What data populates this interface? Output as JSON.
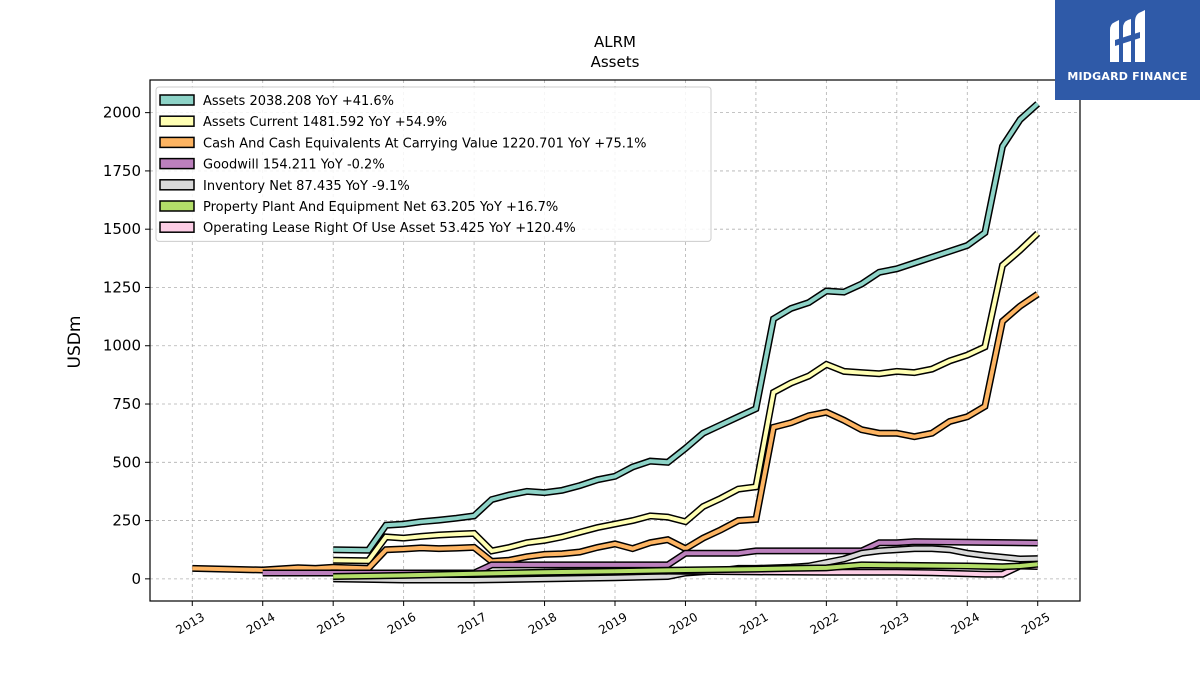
{
  "brand": {
    "name": "MIDGARD FINANCE",
    "bg_color": "#2f5aa8"
  },
  "chart_data": {
    "type": "line",
    "title": "ALRM",
    "subtitle": "Assets",
    "ylabel": "USDm",
    "xlabel": "",
    "xlim": [
      2012.4,
      2025.6
    ],
    "ylim": [
      -95,
      2140
    ],
    "x_ticks": [
      "2013",
      "2014",
      "2015",
      "2016",
      "2017",
      "2018",
      "2019",
      "2020",
      "2021",
      "2022",
      "2023",
      "2024",
      "2025"
    ],
    "y_ticks": [
      0,
      250,
      500,
      750,
      1000,
      1250,
      1500,
      1750,
      2000
    ],
    "grid": true,
    "legend_position": "top-left",
    "series": [
      {
        "name": "Assets  2038.208 YoY +41.6%",
        "color": "#8dd3c7",
        "x": [
          2015.0,
          2015.5,
          2015.75,
          2016.0,
          2016.25,
          2016.5,
          2016.75,
          2017.0,
          2017.25,
          2017.5,
          2017.75,
          2018.0,
          2018.25,
          2018.5,
          2018.75,
          2019.0,
          2019.25,
          2019.5,
          2019.75,
          2020.0,
          2020.25,
          2020.5,
          2020.75,
          2021.0,
          2021.25,
          2021.5,
          2021.75,
          2022.0,
          2022.25,
          2022.5,
          2022.75,
          2023.0,
          2023.25,
          2023.5,
          2023.75,
          2024.0,
          2024.25,
          2024.5,
          2024.75,
          2025.0
        ],
        "y": [
          125,
          123,
          230,
          235,
          245,
          252,
          260,
          270,
          340,
          360,
          375,
          370,
          380,
          400,
          425,
          440,
          480,
          505,
          500,
          560,
          625,
          660,
          695,
          730,
          1115,
          1160,
          1185,
          1235,
          1230,
          1265,
          1315,
          1330,
          1355,
          1380,
          1405,
          1430,
          1485,
          1855,
          1970,
          2038
        ]
      },
      {
        "name": "Assets Current  1481.592 YoY +54.9%",
        "color": "#ffffb3",
        "x": [
          2015.0,
          2015.5,
          2015.75,
          2016.0,
          2016.25,
          2016.5,
          2016.75,
          2017.0,
          2017.25,
          2017.5,
          2017.75,
          2018.0,
          2018.25,
          2018.5,
          2018.75,
          2019.0,
          2019.25,
          2019.5,
          2019.75,
          2020.0,
          2020.25,
          2020.5,
          2020.75,
          2021.0,
          2021.25,
          2021.5,
          2021.75,
          2022.0,
          2022.25,
          2022.5,
          2022.75,
          2023.0,
          2023.25,
          2023.5,
          2023.75,
          2024.0,
          2024.25,
          2024.5,
          2024.75,
          2025.0
        ],
        "y": [
          80,
          78,
          180,
          175,
          182,
          188,
          192,
          195,
          120,
          135,
          155,
          165,
          180,
          200,
          220,
          235,
          250,
          270,
          265,
          245,
          310,
          345,
          385,
          395,
          800,
          840,
          870,
          920,
          890,
          885,
          880,
          890,
          885,
          900,
          935,
          960,
          995,
          1345,
          1410,
          1482
        ]
      },
      {
        "name": "Cash And Cash Equivalents At Carrying Value  1220.701 YoY +75.1%",
        "color": "#fdb462",
        "x": [
          2013.0,
          2014.0,
          2014.5,
          2014.75,
          2015.0,
          2015.5,
          2015.75,
          2016.0,
          2016.25,
          2016.5,
          2016.75,
          2017.0,
          2017.25,
          2017.5,
          2017.75,
          2018.0,
          2018.25,
          2018.5,
          2018.75,
          2019.0,
          2019.25,
          2019.5,
          2019.75,
          2020.0,
          2020.25,
          2020.5,
          2020.75,
          2021.0,
          2021.25,
          2021.5,
          2021.75,
          2022.0,
          2022.25,
          2022.5,
          2022.75,
          2023.0,
          2023.25,
          2023.5,
          2023.75,
          2024.0,
          2024.25,
          2024.5,
          2024.75,
          2025.0
        ],
        "y": [
          45,
          38,
          48,
          45,
          50,
          45,
          125,
          128,
          133,
          130,
          132,
          135,
          75,
          80,
          95,
          105,
          108,
          115,
          135,
          150,
          130,
          155,
          168,
          130,
          175,
          210,
          250,
          255,
          650,
          670,
          700,
          715,
          680,
          640,
          625,
          625,
          610,
          625,
          675,
          695,
          740,
          1105,
          1170,
          1221
        ]
      },
      {
        "name": "Goodwill  154.211 YoY -0.2%",
        "color": "#bc80bd",
        "x": [
          2014.0,
          2017.0,
          2017.25,
          2019.75,
          2020.0,
          2020.75,
          2021.0,
          2022.5,
          2022.75,
          2023.0,
          2023.25,
          2025.0
        ],
        "y": [
          25,
          25,
          60,
          60,
          110,
          110,
          120,
          120,
          155,
          155,
          160,
          154
        ]
      },
      {
        "name": "Inventory Net  87.435 YoY -9.1%",
        "color": "#d9d9d9",
        "x": [
          2015.0,
          2016.0,
          2017.0,
          2018.0,
          2019.0,
          2019.75,
          2020.0,
          2020.5,
          2020.75,
          2021.0,
          2021.5,
          2021.75,
          2022.0,
          2022.25,
          2022.5,
          2022.75,
          2023.0,
          2023.25,
          2023.5,
          2023.75,
          2024.0,
          2024.25,
          2024.75,
          2025.0
        ],
        "y": [
          0,
          -5,
          -5,
          0,
          5,
          10,
          25,
          35,
          45,
          45,
          50,
          55,
          70,
          85,
          110,
          120,
          125,
          130,
          130,
          125,
          110,
          100,
          85,
          87
        ]
      },
      {
        "name": "Property Plant And Equipment Net  63.205 YoY +16.7%",
        "color": "#b3de69",
        "x": [
          2015.0,
          2016.0,
          2017.0,
          2018.0,
          2019.0
        ],
        "y": [
          10,
          15,
          22,
          28,
          33
        ]
      },
      {
        "name": "Operating Lease Right Of Use Asset  53.425 YoY +120.4%",
        "color": "#fccde5",
        "x": [
          2019.0,
          2020.0,
          2021.0,
          2022.0,
          2022.75,
          2023.0,
          2023.5,
          2024.0,
          2024.25,
          2024.5,
          2024.75,
          2025.0
        ],
        "y": [
          35,
          33,
          30,
          28,
          28,
          28,
          26,
          22,
          20,
          20,
          55,
          53
        ]
      },
      {
        "name": "",
        "color": "#b3de69",
        "x": [
          2019.0,
          2020.0,
          2021.0,
          2021.5,
          2022.0,
          2022.5,
          2023.0,
          2024.0,
          2024.5,
          2024.75,
          2025.0
        ],
        "y": [
          33,
          38,
          42,
          45,
          47,
          60,
          58,
          55,
          52,
          55,
          63
        ]
      }
    ]
  }
}
